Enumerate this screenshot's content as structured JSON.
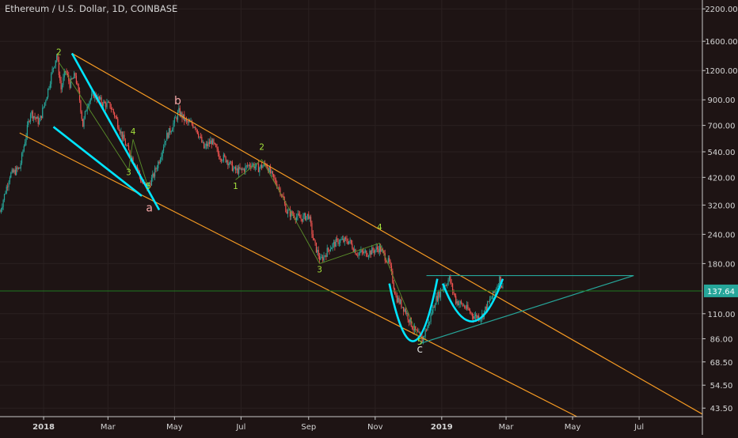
{
  "chart_data": {
    "type": "candlestick",
    "title": "Ethereum / U.S. Dollar, 1D, COINBASE",
    "y_scale": "log",
    "ylim": [
      40,
      2400
    ],
    "xlim": [
      "2017-11-22",
      "2019-08-28"
    ],
    "y_ticks": [
      "2200.00",
      "1600.00",
      "1200.00",
      "900.00",
      "700.00",
      "540.00",
      "420.00",
      "320.00",
      "240.00",
      "180.00",
      "137.64",
      "110.00",
      "86.00",
      "68.50",
      "54.50",
      "43.50"
    ],
    "y_tick_values": [
      2200,
      1600,
      1200,
      900,
      700,
      540,
      420,
      320,
      240,
      180,
      137.64,
      110,
      86,
      68.5,
      54.5,
      43.5
    ],
    "x_ticks": [
      {
        "label": "2018",
        "date": "2018-01-01",
        "bold": true
      },
      {
        "label": "Mar",
        "date": "2018-03-01",
        "bold": false
      },
      {
        "label": "May",
        "date": "2018-05-01",
        "bold": false
      },
      {
        "label": "Jul",
        "date": "2018-07-01",
        "bold": false
      },
      {
        "label": "Sep",
        "date": "2018-09-01",
        "bold": false
      },
      {
        "label": "Nov",
        "date": "2018-11-01",
        "bold": false
      },
      {
        "label": "2019",
        "date": "2019-01-01",
        "bold": true
      },
      {
        "label": "Mar",
        "date": "2019-03-01",
        "bold": false
      },
      {
        "label": "May",
        "date": "2019-05-01",
        "bold": false
      },
      {
        "label": "Jul",
        "date": "2019-07-01",
        "bold": false
      }
    ],
    "current_price": {
      "value": 137.64,
      "label": "137.64",
      "color": "#26a69a"
    },
    "price_path": [
      [
        "2017-11-22",
        300
      ],
      [
        "2017-12-01",
        430
      ],
      [
        "2017-12-10",
        460
      ],
      [
        "2017-12-20",
        800
      ],
      [
        "2017-12-28",
        720
      ],
      [
        "2018-01-04",
        950
      ],
      [
        "2018-01-09",
        1200
      ],
      [
        "2018-01-13",
        1400
      ],
      [
        "2018-01-17",
        1000
      ],
      [
        "2018-01-21",
        1200
      ],
      [
        "2018-01-25",
        1050
      ],
      [
        "2018-01-30",
        1150
      ],
      [
        "2018-02-03",
        900
      ],
      [
        "2018-02-06",
        700
      ],
      [
        "2018-02-10",
        870
      ],
      [
        "2018-02-16",
        950
      ],
      [
        "2018-02-24",
        870
      ],
      [
        "2018-03-03",
        850
      ],
      [
        "2018-03-08",
        760
      ],
      [
        "2018-03-14",
        630
      ],
      [
        "2018-03-20",
        540
      ],
      [
        "2018-03-27",
        470
      ],
      [
        "2018-04-01",
        400
      ],
      [
        "2018-04-06",
        380
      ],
      [
        "2018-04-11",
        420
      ],
      [
        "2018-04-17",
        500
      ],
      [
        "2018-04-23",
        620
      ],
      [
        "2018-04-28",
        680
      ],
      [
        "2018-05-05",
        800
      ],
      [
        "2018-05-12",
        720
      ],
      [
        "2018-05-20",
        700
      ],
      [
        "2018-05-28",
        560
      ],
      [
        "2018-06-04",
        600
      ],
      [
        "2018-06-11",
        520
      ],
      [
        "2018-06-18",
        500
      ],
      [
        "2018-06-25",
        450
      ],
      [
        "2018-07-02",
        450
      ],
      [
        "2018-07-10",
        480
      ],
      [
        "2018-07-17",
        460
      ],
      [
        "2018-07-24",
        480
      ],
      [
        "2018-07-30",
        420
      ],
      [
        "2018-08-06",
        370
      ],
      [
        "2018-08-12",
        300
      ],
      [
        "2018-08-18",
        290
      ],
      [
        "2018-08-25",
        280
      ],
      [
        "2018-09-01",
        290
      ],
      [
        "2018-09-06",
        220
      ],
      [
        "2018-09-12",
        185
      ],
      [
        "2018-09-20",
        210
      ],
      [
        "2018-09-28",
        225
      ],
      [
        "2018-10-08",
        225
      ],
      [
        "2018-10-15",
        200
      ],
      [
        "2018-10-25",
        200
      ],
      [
        "2018-11-05",
        210
      ],
      [
        "2018-11-14",
        180
      ],
      [
        "2018-11-20",
        130
      ],
      [
        "2018-11-28",
        115
      ],
      [
        "2018-12-06",
        95
      ],
      [
        "2018-12-14",
        85
      ],
      [
        "2018-12-20",
        100
      ],
      [
        "2018-12-26",
        125
      ],
      [
        "2019-01-01",
        140
      ],
      [
        "2019-01-08",
        155
      ],
      [
        "2019-01-14",
        125
      ],
      [
        "2019-01-22",
        118
      ],
      [
        "2019-01-30",
        108
      ],
      [
        "2019-02-06",
        106
      ],
      [
        "2019-02-12",
        120
      ],
      [
        "2019-02-18",
        135
      ],
      [
        "2019-02-23",
        155
      ],
      [
        "2019-02-26",
        140
      ]
    ],
    "wave_labels": [
      {
        "text": "2",
        "date": "2018-01-15",
        "price": 1400,
        "color": "#a5e23c",
        "size": "small"
      },
      {
        "text": "4",
        "date": "2018-03-24",
        "price": 640,
        "color": "#a5e23c",
        "size": "small"
      },
      {
        "text": "3",
        "date": "2018-03-20",
        "price": 430,
        "color": "#a5e23c",
        "size": "small"
      },
      {
        "text": "5",
        "date": "2018-04-07",
        "price": 375,
        "color": "#a5e23c",
        "size": "small"
      },
      {
        "text": "a",
        "date": "2018-04-08",
        "price": 300,
        "color": "#f4a6a6",
        "size": "large"
      },
      {
        "text": "b",
        "date": "2018-05-04",
        "price": 860,
        "color": "#f4a6a6",
        "size": "large"
      },
      {
        "text": "1",
        "date": "2018-06-26",
        "price": 375,
        "color": "#a5e23c",
        "size": "small"
      },
      {
        "text": "2",
        "date": "2018-07-20",
        "price": 550,
        "color": "#a5e23c",
        "size": "small"
      },
      {
        "text": "3",
        "date": "2018-09-11",
        "price": 165,
        "color": "#a5e23c",
        "size": "small"
      },
      {
        "text": "4",
        "date": "2018-11-05",
        "price": 250,
        "color": "#a5e23c",
        "size": "small"
      },
      {
        "text": "5",
        "date": "2018-12-12",
        "price": 81,
        "color": "#a5e23c",
        "size": "small"
      },
      {
        "text": "c",
        "date": "2018-12-12",
        "price": 75,
        "color": "#d4d4d4",
        "size": "large"
      }
    ],
    "trend_lines": [
      {
        "name": "channel-upper",
        "color": "#f59a23",
        "from": [
          "2018-01-27",
          1420
        ],
        "to": [
          "2019-08-28",
          41
        ]
      },
      {
        "name": "channel-lower",
        "color": "#f59a23",
        "from": [
          "2017-12-10",
          650
        ],
        "to": [
          "2019-05-05",
          40
        ]
      },
      {
        "name": "wedge-upper",
        "color": "#00e5ff",
        "from": [
          "2018-01-27",
          1420
        ],
        "to": [
          "2018-04-17",
          305
        ]
      },
      {
        "name": "wedge-lower",
        "color": "#00e5ff",
        "from": [
          "2018-01-10",
          690
        ],
        "to": [
          "2018-04-01",
          350
        ]
      },
      {
        "name": "resistance",
        "color": "#26a69a",
        "from": [
          "2018-12-18",
          160
        ],
        "to": [
          "2019-06-26",
          160
        ]
      },
      {
        "name": "support",
        "color": "#26a69a",
        "from": [
          "2018-12-12",
          82
        ],
        "to": [
          "2019-06-26",
          160
        ]
      },
      {
        "name": "price-level",
        "color": "#1f7a1f",
        "from": [
          "2017-11-22",
          137.64
        ],
        "to": [
          "2019-08-28",
          137.64
        ]
      }
    ],
    "wave_paths": [
      [
        [
          "2018-01-15",
          1300
        ],
        [
          "2018-03-20",
          450
        ],
        [
          "2018-03-24",
          610
        ],
        [
          "2018-04-07",
          380
        ]
      ],
      [
        [
          "2018-06-26",
          410
        ],
        [
          "2018-07-20",
          500
        ],
        [
          "2018-09-11",
          180
        ],
        [
          "2018-11-05",
          220
        ],
        [
          "2018-12-12",
          84
        ]
      ]
    ],
    "cup_arcs": [
      {
        "from": [
          "2018-11-14",
          148
        ],
        "to": [
          "2018-12-28",
          155
        ],
        "bottom": 84
      },
      {
        "from": [
          "2019-01-02",
          148
        ],
        "to": [
          "2019-02-26",
          155
        ],
        "bottom": 102
      }
    ]
  }
}
